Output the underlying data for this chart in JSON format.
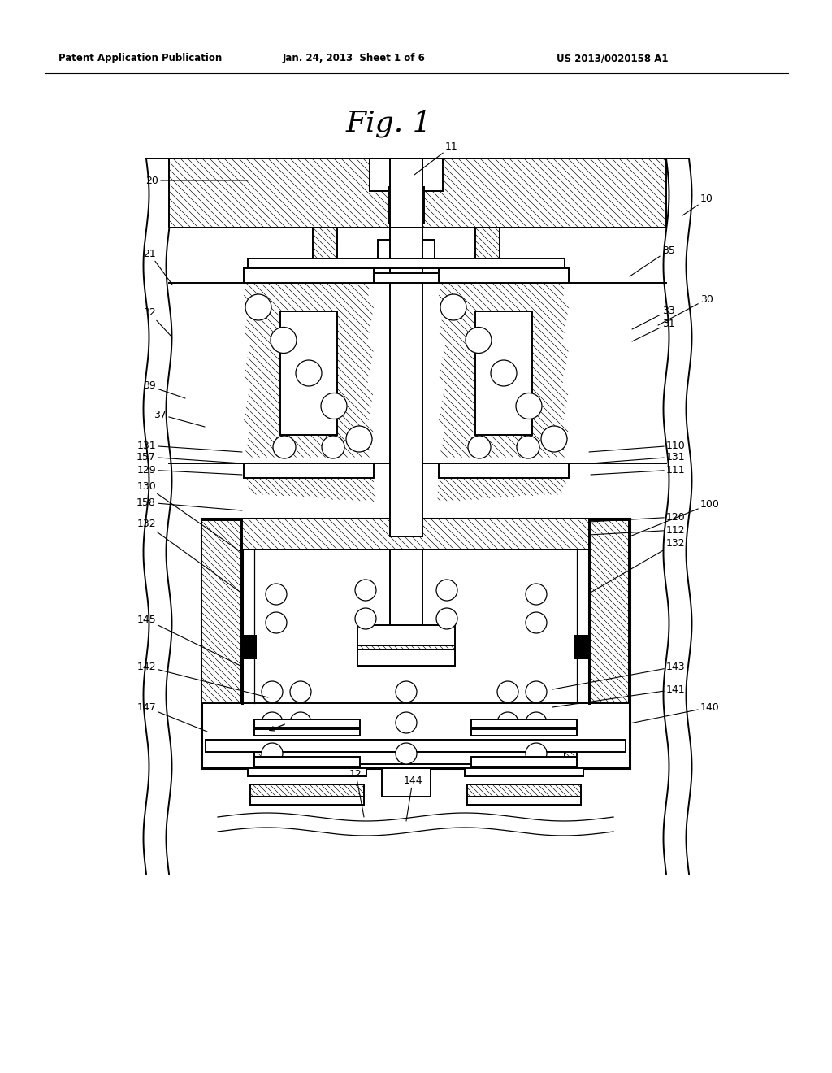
{
  "bg_color": "#ffffff",
  "line_color": "#000000",
  "header_left": "Patent Application Publication",
  "header_mid": "Jan. 24, 2013  Sheet 1 of 6",
  "header_right": "US 2013/0020158 A1",
  "title": "Fig. 1",
  "label_fontsize": 9,
  "title_fontsize": 26,
  "lw_main": 1.4,
  "lw_thick": 2.2,
  "lw_thin": 0.9,
  "lw_hatch": 0.45
}
